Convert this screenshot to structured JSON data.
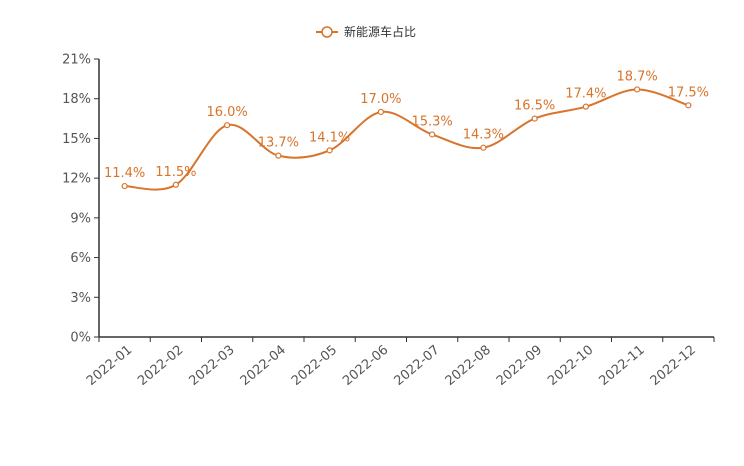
{
  "chart_data": {
    "type": "line",
    "title": "",
    "xlabel": "",
    "ylabel": "",
    "categories": [
      "2022-01",
      "2022-02",
      "2022-03",
      "2022-04",
      "2022-05",
      "2022-06",
      "2022-07",
      "2022-08",
      "2022-09",
      "2022-10",
      "2022-11",
      "2022-12"
    ],
    "series": [
      {
        "name": "新能源车占比",
        "values": [
          11.4,
          11.5,
          16.0,
          13.7,
          14.1,
          17.0,
          15.3,
          14.3,
          16.5,
          17.4,
          18.7,
          17.5
        ],
        "labels": [
          "11.4%",
          "11.5%",
          "16.0%",
          "13.7%",
          "14.1%",
          "17.0%",
          "15.3%",
          "14.3%",
          "16.5%",
          "17.4%",
          "18.7%",
          "17.5%"
        ],
        "color": "#d8742b"
      }
    ],
    "ylim": [
      0,
      21
    ],
    "yticks": [
      "0%",
      "3%",
      "6%",
      "9%",
      "12%",
      "15%",
      "18%",
      "21%"
    ],
    "legend_position": "top-center",
    "grid": false,
    "smooth": true
  }
}
